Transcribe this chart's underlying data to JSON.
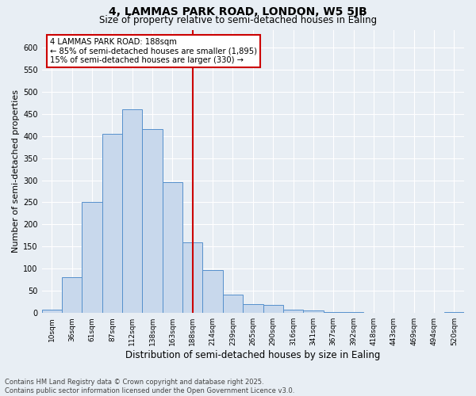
{
  "title": "4, LAMMAS PARK ROAD, LONDON, W5 5JB",
  "subtitle": "Size of property relative to semi-detached houses in Ealing",
  "xlabel": "Distribution of semi-detached houses by size in Ealing",
  "ylabel": "Number of semi-detached properties",
  "categories": [
    "10sqm",
    "36sqm",
    "61sqm",
    "87sqm",
    "112sqm",
    "138sqm",
    "163sqm",
    "188sqm",
    "214sqm",
    "239sqm",
    "265sqm",
    "290sqm",
    "316sqm",
    "341sqm",
    "367sqm",
    "392sqm",
    "418sqm",
    "443sqm",
    "469sqm",
    "494sqm",
    "520sqm"
  ],
  "values": [
    8,
    80,
    250,
    405,
    460,
    415,
    295,
    160,
    97,
    42,
    20,
    18,
    7,
    6,
    3,
    3,
    1,
    1,
    0,
    0,
    2
  ],
  "bar_color": "#c8d8ec",
  "bar_edge_color": "#5590cc",
  "vline_x": 7,
  "vline_color": "#cc0000",
  "annotation_title": "4 LAMMAS PARK ROAD: 188sqm",
  "annotation_line1": "← 85% of semi-detached houses are smaller (1,895)",
  "annotation_line2": "15% of semi-detached houses are larger (330) →",
  "annotation_box_edgecolor": "#cc0000",
  "ylim": [
    0,
    640
  ],
  "yticks": [
    0,
    50,
    100,
    150,
    200,
    250,
    300,
    350,
    400,
    450,
    500,
    550,
    600
  ],
  "background_color": "#e8eef4",
  "grid_color": "#ffffff",
  "title_fontsize": 10,
  "subtitle_fontsize": 8.5,
  "axis_label_fontsize": 8,
  "tick_fontsize": 6.5,
  "footer_fontsize": 6,
  "footer_line1": "Contains HM Land Registry data © Crown copyright and database right 2025.",
  "footer_line2": "Contains public sector information licensed under the Open Government Licence v3.0."
}
